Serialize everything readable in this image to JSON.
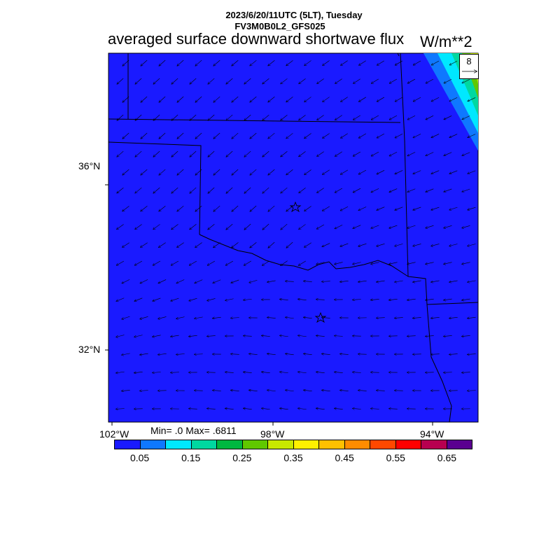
{
  "header": {
    "line1": "2023/6/20/11UTC (5LT), Tuesday",
    "line2": "FV3M0B0L2_GFS025",
    "title": "averaged surface downward shortwave flux",
    "units": "W/m**2"
  },
  "map": {
    "background_color": "#1a1aff",
    "lat_labels": [
      "36°N",
      "32°N"
    ],
    "lon_labels": [
      "102°W",
      "98°W",
      "94°W"
    ],
    "vector_reference": "8",
    "markers": [
      "star",
      "star"
    ]
  },
  "stats": {
    "text": "Min= .0 Max= .6811",
    "min": 0.0,
    "max": 0.6811
  },
  "colorbar": {
    "colors": [
      "#1a1aff",
      "#0f78ff",
      "#00e8ff",
      "#00d8a0",
      "#00b840",
      "#60c800",
      "#c8e800",
      "#fff000",
      "#ffc000",
      "#ff8c00",
      "#ff4800",
      "#ff0000",
      "#b80050",
      "#5a0090"
    ],
    "labels": [
      "0.05",
      "0.15",
      "0.25",
      "0.35",
      "0.45",
      "0.55",
      "0.65"
    ]
  }
}
